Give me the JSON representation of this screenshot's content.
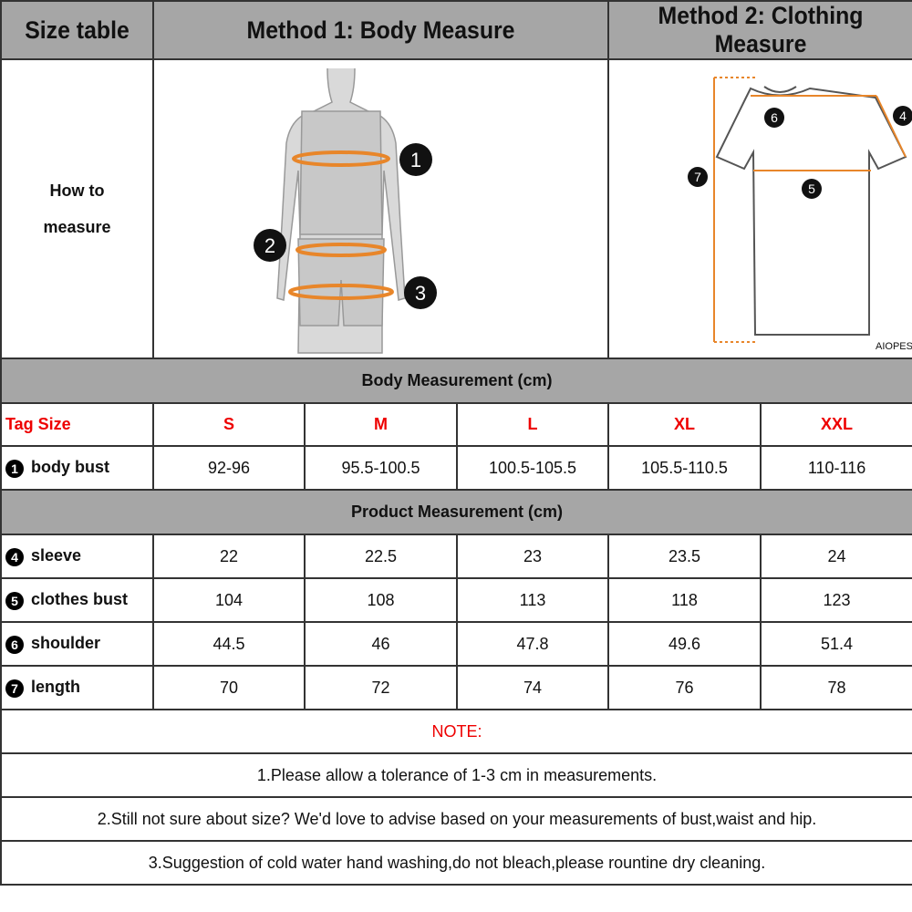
{
  "header": {
    "size_table": "Size table",
    "method1": "Method 1: Body  Measure",
    "method2": "Method 2: Clothing Measure"
  },
  "how_to": {
    "line1": "How to",
    "line2": "measure",
    "body_markers": [
      "1",
      "2",
      "3"
    ],
    "clothing_markers": [
      "4",
      "5",
      "6",
      "7"
    ],
    "brand": "AIOPESON"
  },
  "body_section": "Body Measurement (cm)",
  "product_section": "Product Measurement (cm)",
  "tag_size": {
    "label": "Tag Size",
    "sizes": [
      "S",
      "M",
      "L",
      "XL",
      "XXL"
    ]
  },
  "body_rows": [
    {
      "num": "1",
      "label": "body bust",
      "values": [
        "92-96",
        "95.5-100.5",
        "100.5-105.5",
        "105.5-110.5",
        "110-116"
      ]
    }
  ],
  "product_rows": [
    {
      "num": "4",
      "label": "sleeve",
      "values": [
        "22",
        "22.5",
        "23",
        "23.5",
        "24"
      ]
    },
    {
      "num": "5",
      "label": "clothes bust",
      "values": [
        "104",
        "108",
        "113",
        "118",
        "123"
      ]
    },
    {
      "num": "6",
      "label": "shoulder",
      "values": [
        "44.5",
        "46",
        "47.8",
        "49.6",
        "51.4"
      ]
    },
    {
      "num": "7",
      "label": "length",
      "values": [
        "70",
        "72",
        "74",
        "76",
        "78"
      ]
    }
  ],
  "notes": {
    "title": "NOTE:",
    "items": [
      "1.Please allow a tolerance of 1-3 cm in measurements.",
      "2.Still not sure about size? We'd love to advise based on your measurements of bust,waist and hip.",
      "3.Suggestion of cold water hand washing,do not bleach,please rountine dry cleaning."
    ]
  },
  "colors": {
    "header_gray": "#a6a6a6",
    "accent_red": "#e00000",
    "measure_orange": "#e8862a"
  }
}
